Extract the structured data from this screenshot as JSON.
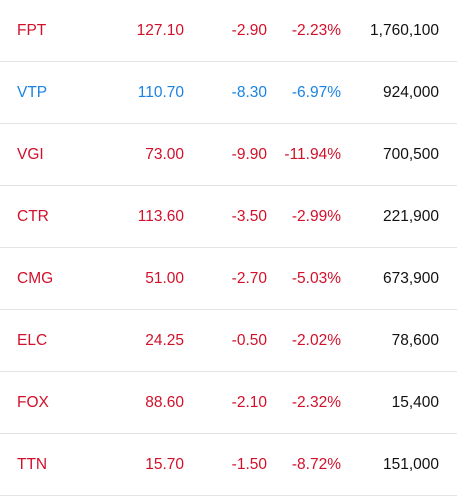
{
  "colors": {
    "down": "#d2102a",
    "ref": "#1b82e4",
    "volume": "#111111",
    "divider": "#e3e3e6"
  },
  "rows": [
    {
      "symbol": "FPT",
      "price": "127.10",
      "change": "-2.90",
      "percent": "-2.23%",
      "volume": "1,760,100",
      "status": "down"
    },
    {
      "symbol": "VTP",
      "price": "110.70",
      "change": "-8.30",
      "percent": "-6.97%",
      "volume": "924,000",
      "status": "ref"
    },
    {
      "symbol": "VGI",
      "price": "73.00",
      "change": "-9.90",
      "percent": "-11.94%",
      "volume": "700,500",
      "status": "down"
    },
    {
      "symbol": "CTR",
      "price": "113.60",
      "change": "-3.50",
      "percent": "-2.99%",
      "volume": "221,900",
      "status": "down"
    },
    {
      "symbol": "CMG",
      "price": "51.00",
      "change": "-2.70",
      "percent": "-5.03%",
      "volume": "673,900",
      "status": "down"
    },
    {
      "symbol": "ELC",
      "price": "24.25",
      "change": "-0.50",
      "percent": "-2.02%",
      "volume": "78,600",
      "status": "down"
    },
    {
      "symbol": "FOX",
      "price": "88.60",
      "change": "-2.10",
      "percent": "-2.32%",
      "volume": "15,400",
      "status": "down"
    },
    {
      "symbol": "TTN",
      "price": "15.70",
      "change": "-1.50",
      "percent": "-8.72%",
      "volume": "151,000",
      "status": "down"
    }
  ]
}
